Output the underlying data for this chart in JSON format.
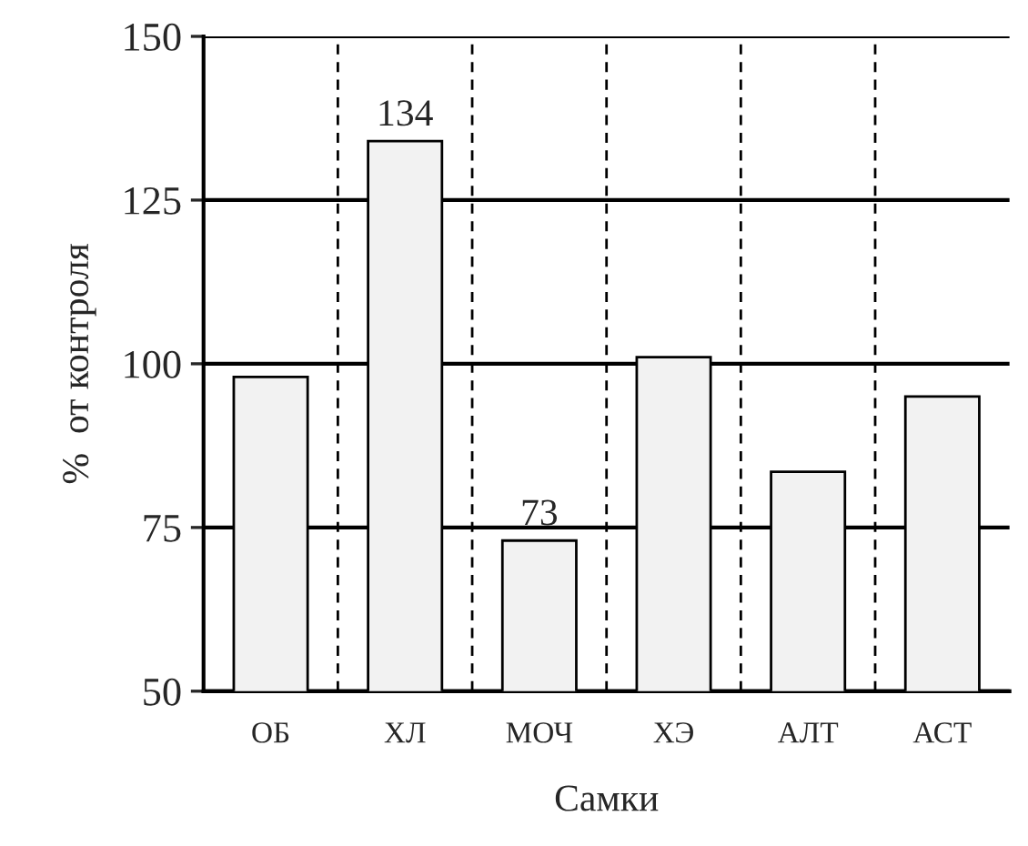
{
  "chart_data": {
    "type": "bar",
    "xlabel": "Самки",
    "ylabel": "%  от контроля",
    "categories": [
      "ОБ",
      "ХЛ",
      "МОЧ",
      "ХЭ",
      "АЛТ",
      "АСТ"
    ],
    "values": [
      98,
      134,
      73,
      101,
      83.5,
      95
    ],
    "value_labels": [
      null,
      "134",
      "73",
      null,
      null,
      null
    ],
    "color": "#f2f2f2",
    "ylim": [
      50,
      150
    ],
    "yticks": [
      50,
      75,
      100,
      125,
      150
    ],
    "grid": true
  }
}
